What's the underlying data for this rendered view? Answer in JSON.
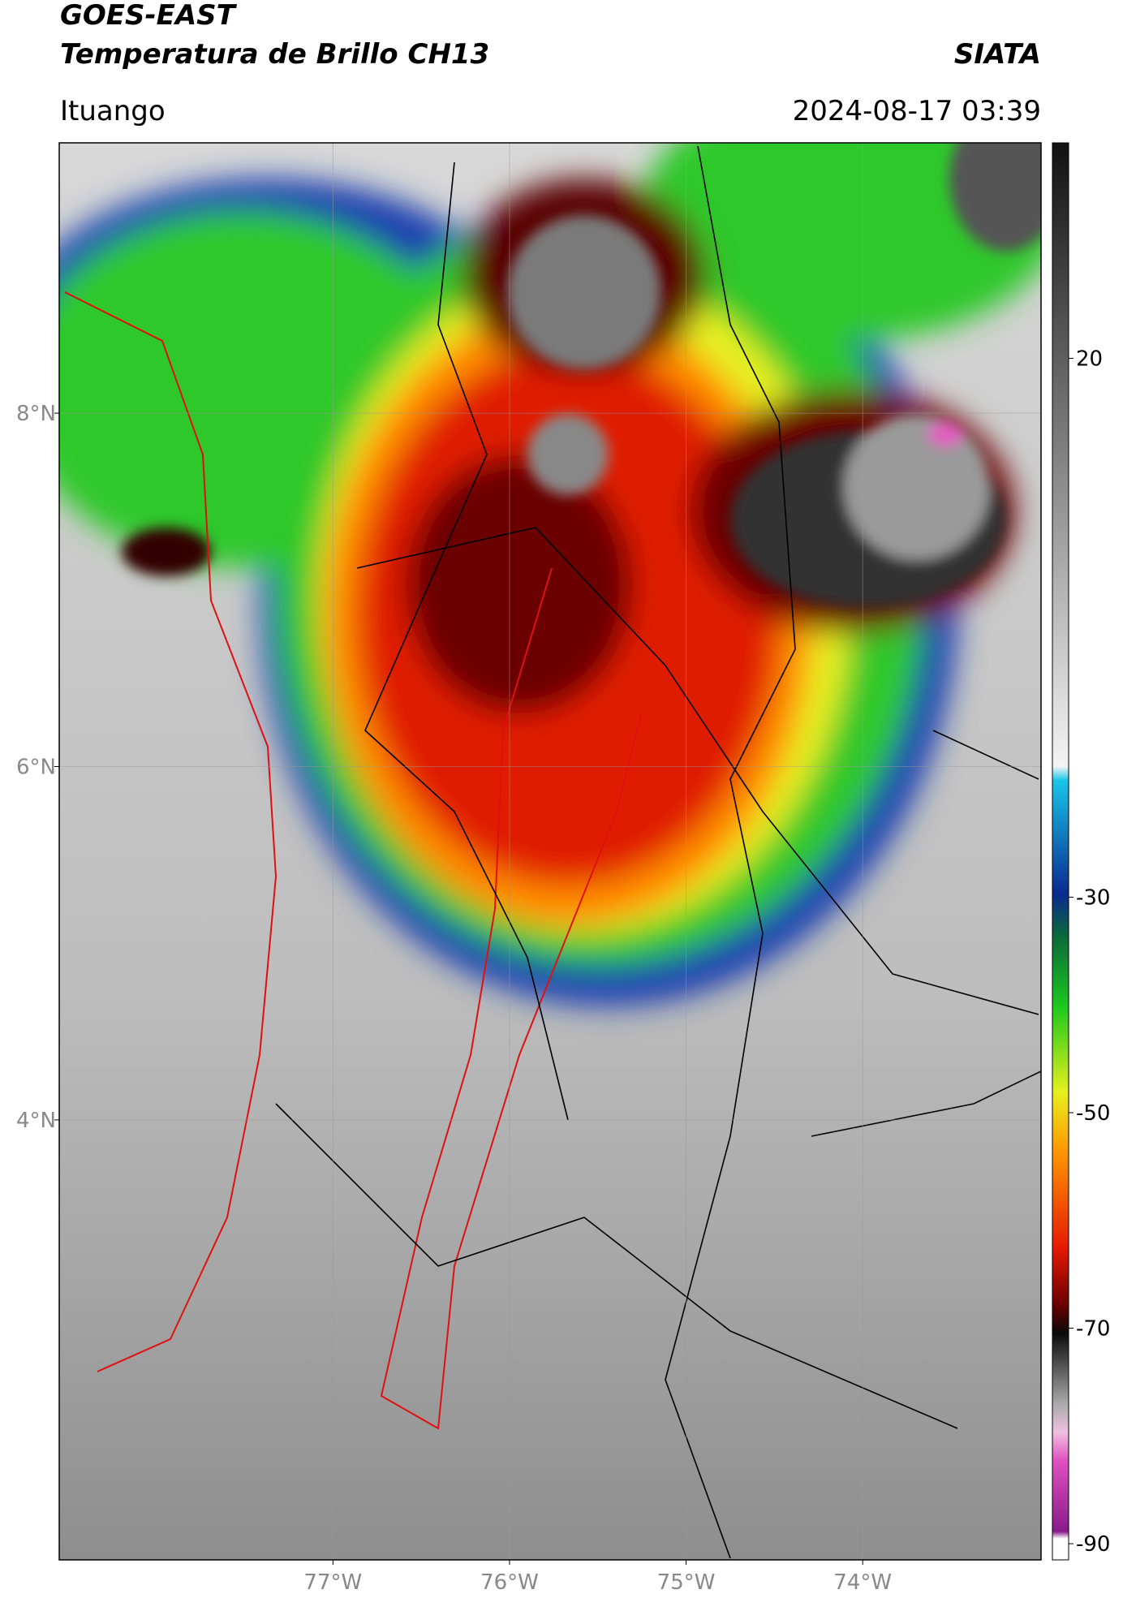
{
  "header": {
    "title": "GOES-EAST",
    "subtitle": "Temperatura de Brillo CH13",
    "source": "SIATA",
    "location": "Ituango",
    "datetime": "2024-08-17 03:39"
  },
  "map": {
    "xlim": [
      -78.55,
      -72.99
    ],
    "ylim": [
      1.51,
      9.53
    ],
    "xticks": [
      {
        "value": -77,
        "label": "77°W"
      },
      {
        "value": -76,
        "label": "76°W"
      },
      {
        "value": -75,
        "label": "75°W"
      },
      {
        "value": -74,
        "label": "74°W"
      }
    ],
    "yticks": [
      {
        "value": 8,
        "label": "8°N"
      },
      {
        "value": 6,
        "label": "6°N"
      },
      {
        "value": 4,
        "label": "4°N"
      }
    ],
    "grid": true
  },
  "colorbar": {
    "lim": [
      -91.5,
      40
    ],
    "ticks": [
      20,
      -30,
      -50,
      -70,
      -90
    ]
  }
}
